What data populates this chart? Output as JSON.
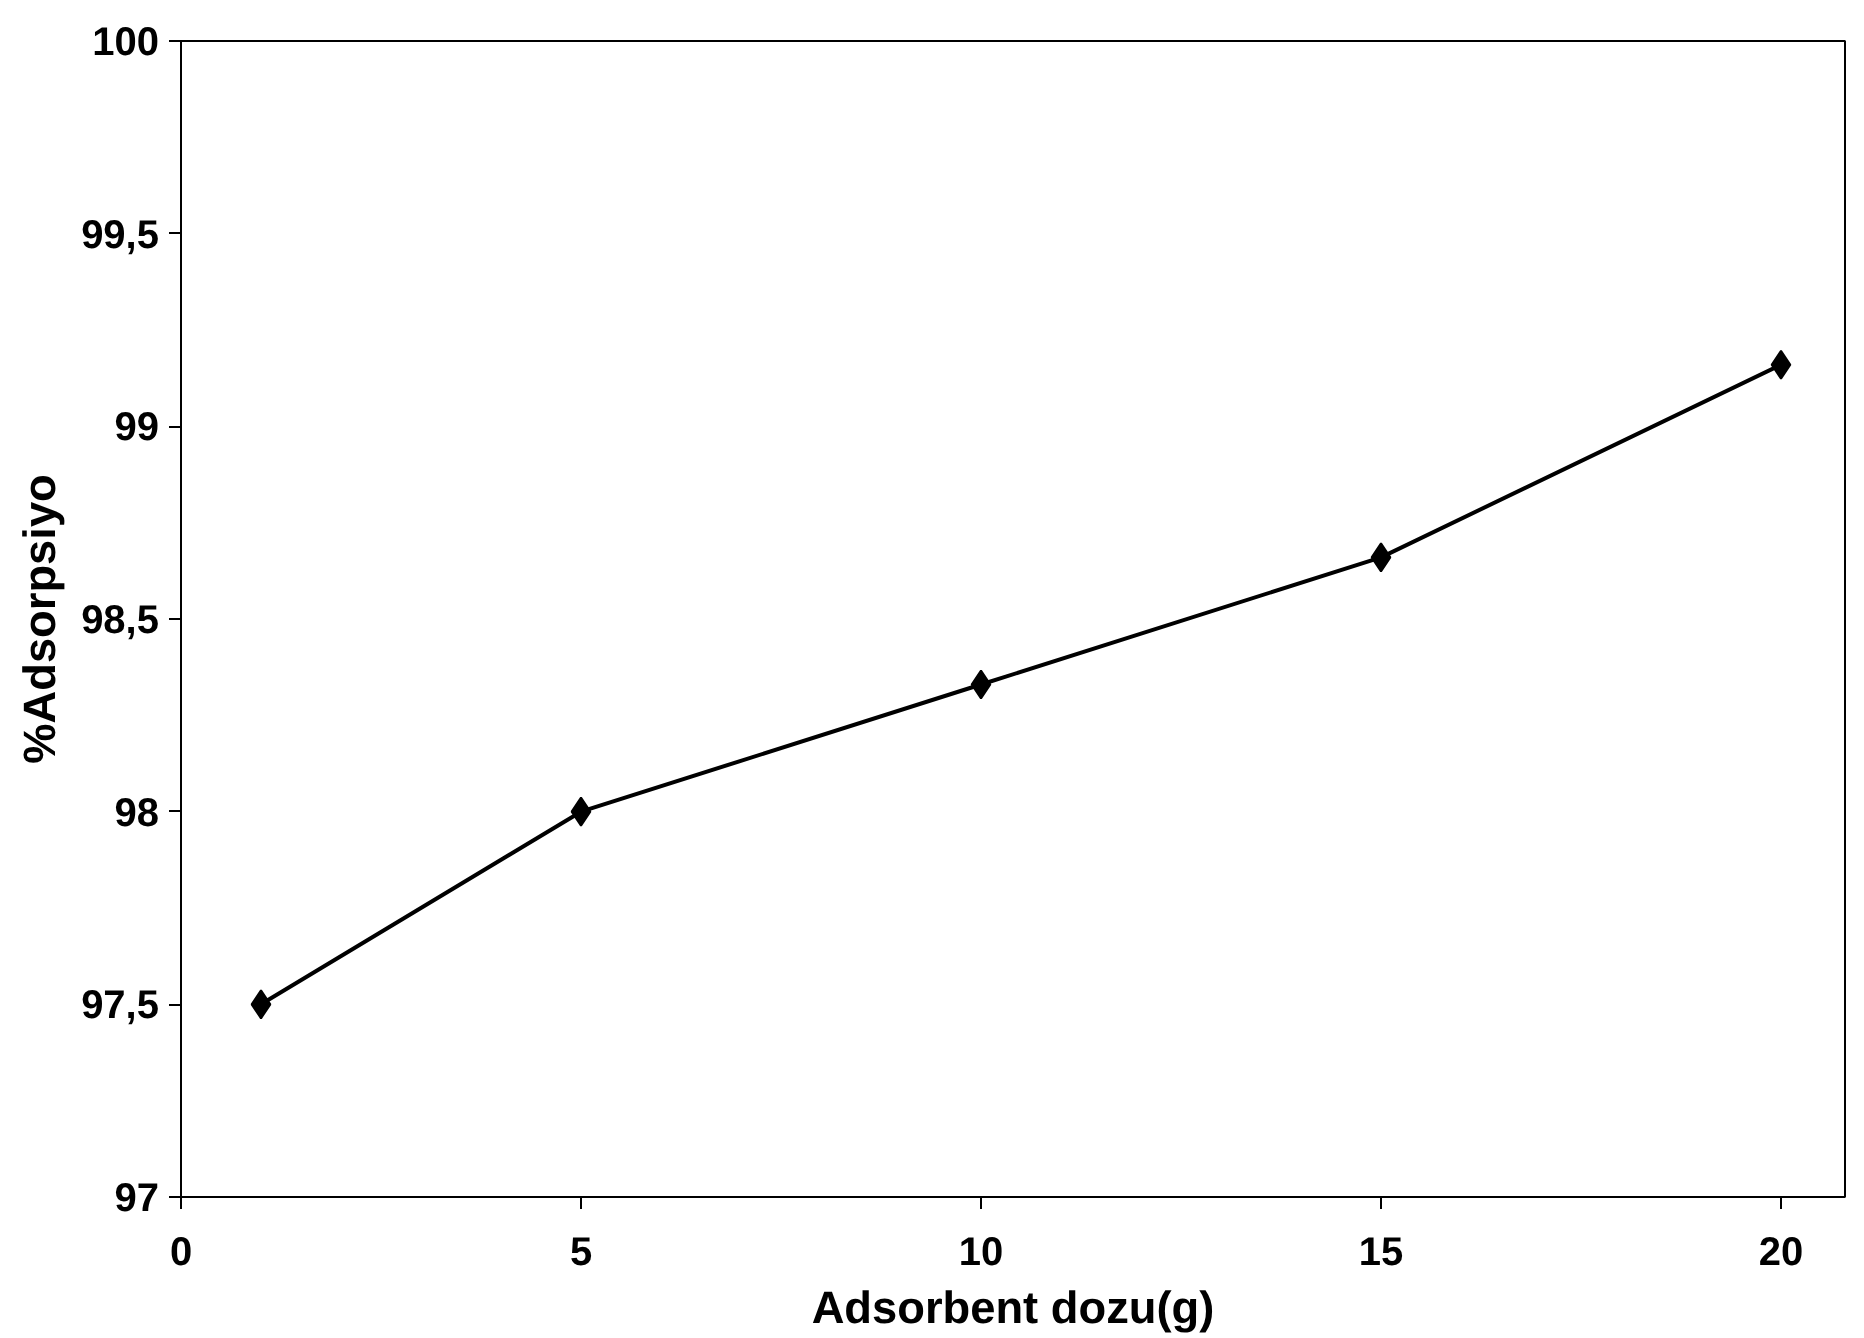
{
  "chart_data": {
    "type": "line",
    "xlabel": "Adsorbent dozu(g)",
    "ylabel": "%Adsorpsiyo",
    "x": [
      1,
      5,
      10,
      15,
      20
    ],
    "series": [
      {
        "color": "#000000",
        "values": [
          97.5,
          98.0,
          98.33,
          98.66,
          99.16
        ]
      }
    ],
    "xlim": [
      0,
      20.8
    ],
    "xticks": [
      0,
      5,
      10,
      15,
      20
    ],
    "ylim": [
      97,
      100
    ],
    "yticks": [
      97,
      {
        "value": 97.5,
        "label": "97,5"
      },
      98,
      {
        "value": 98.5,
        "label": "98,5"
      },
      99,
      {
        "value": 99.5,
        "label": "99,5"
      },
      100
    ],
    "grid": false,
    "marker": "diamond",
    "line_style": "solid"
  }
}
